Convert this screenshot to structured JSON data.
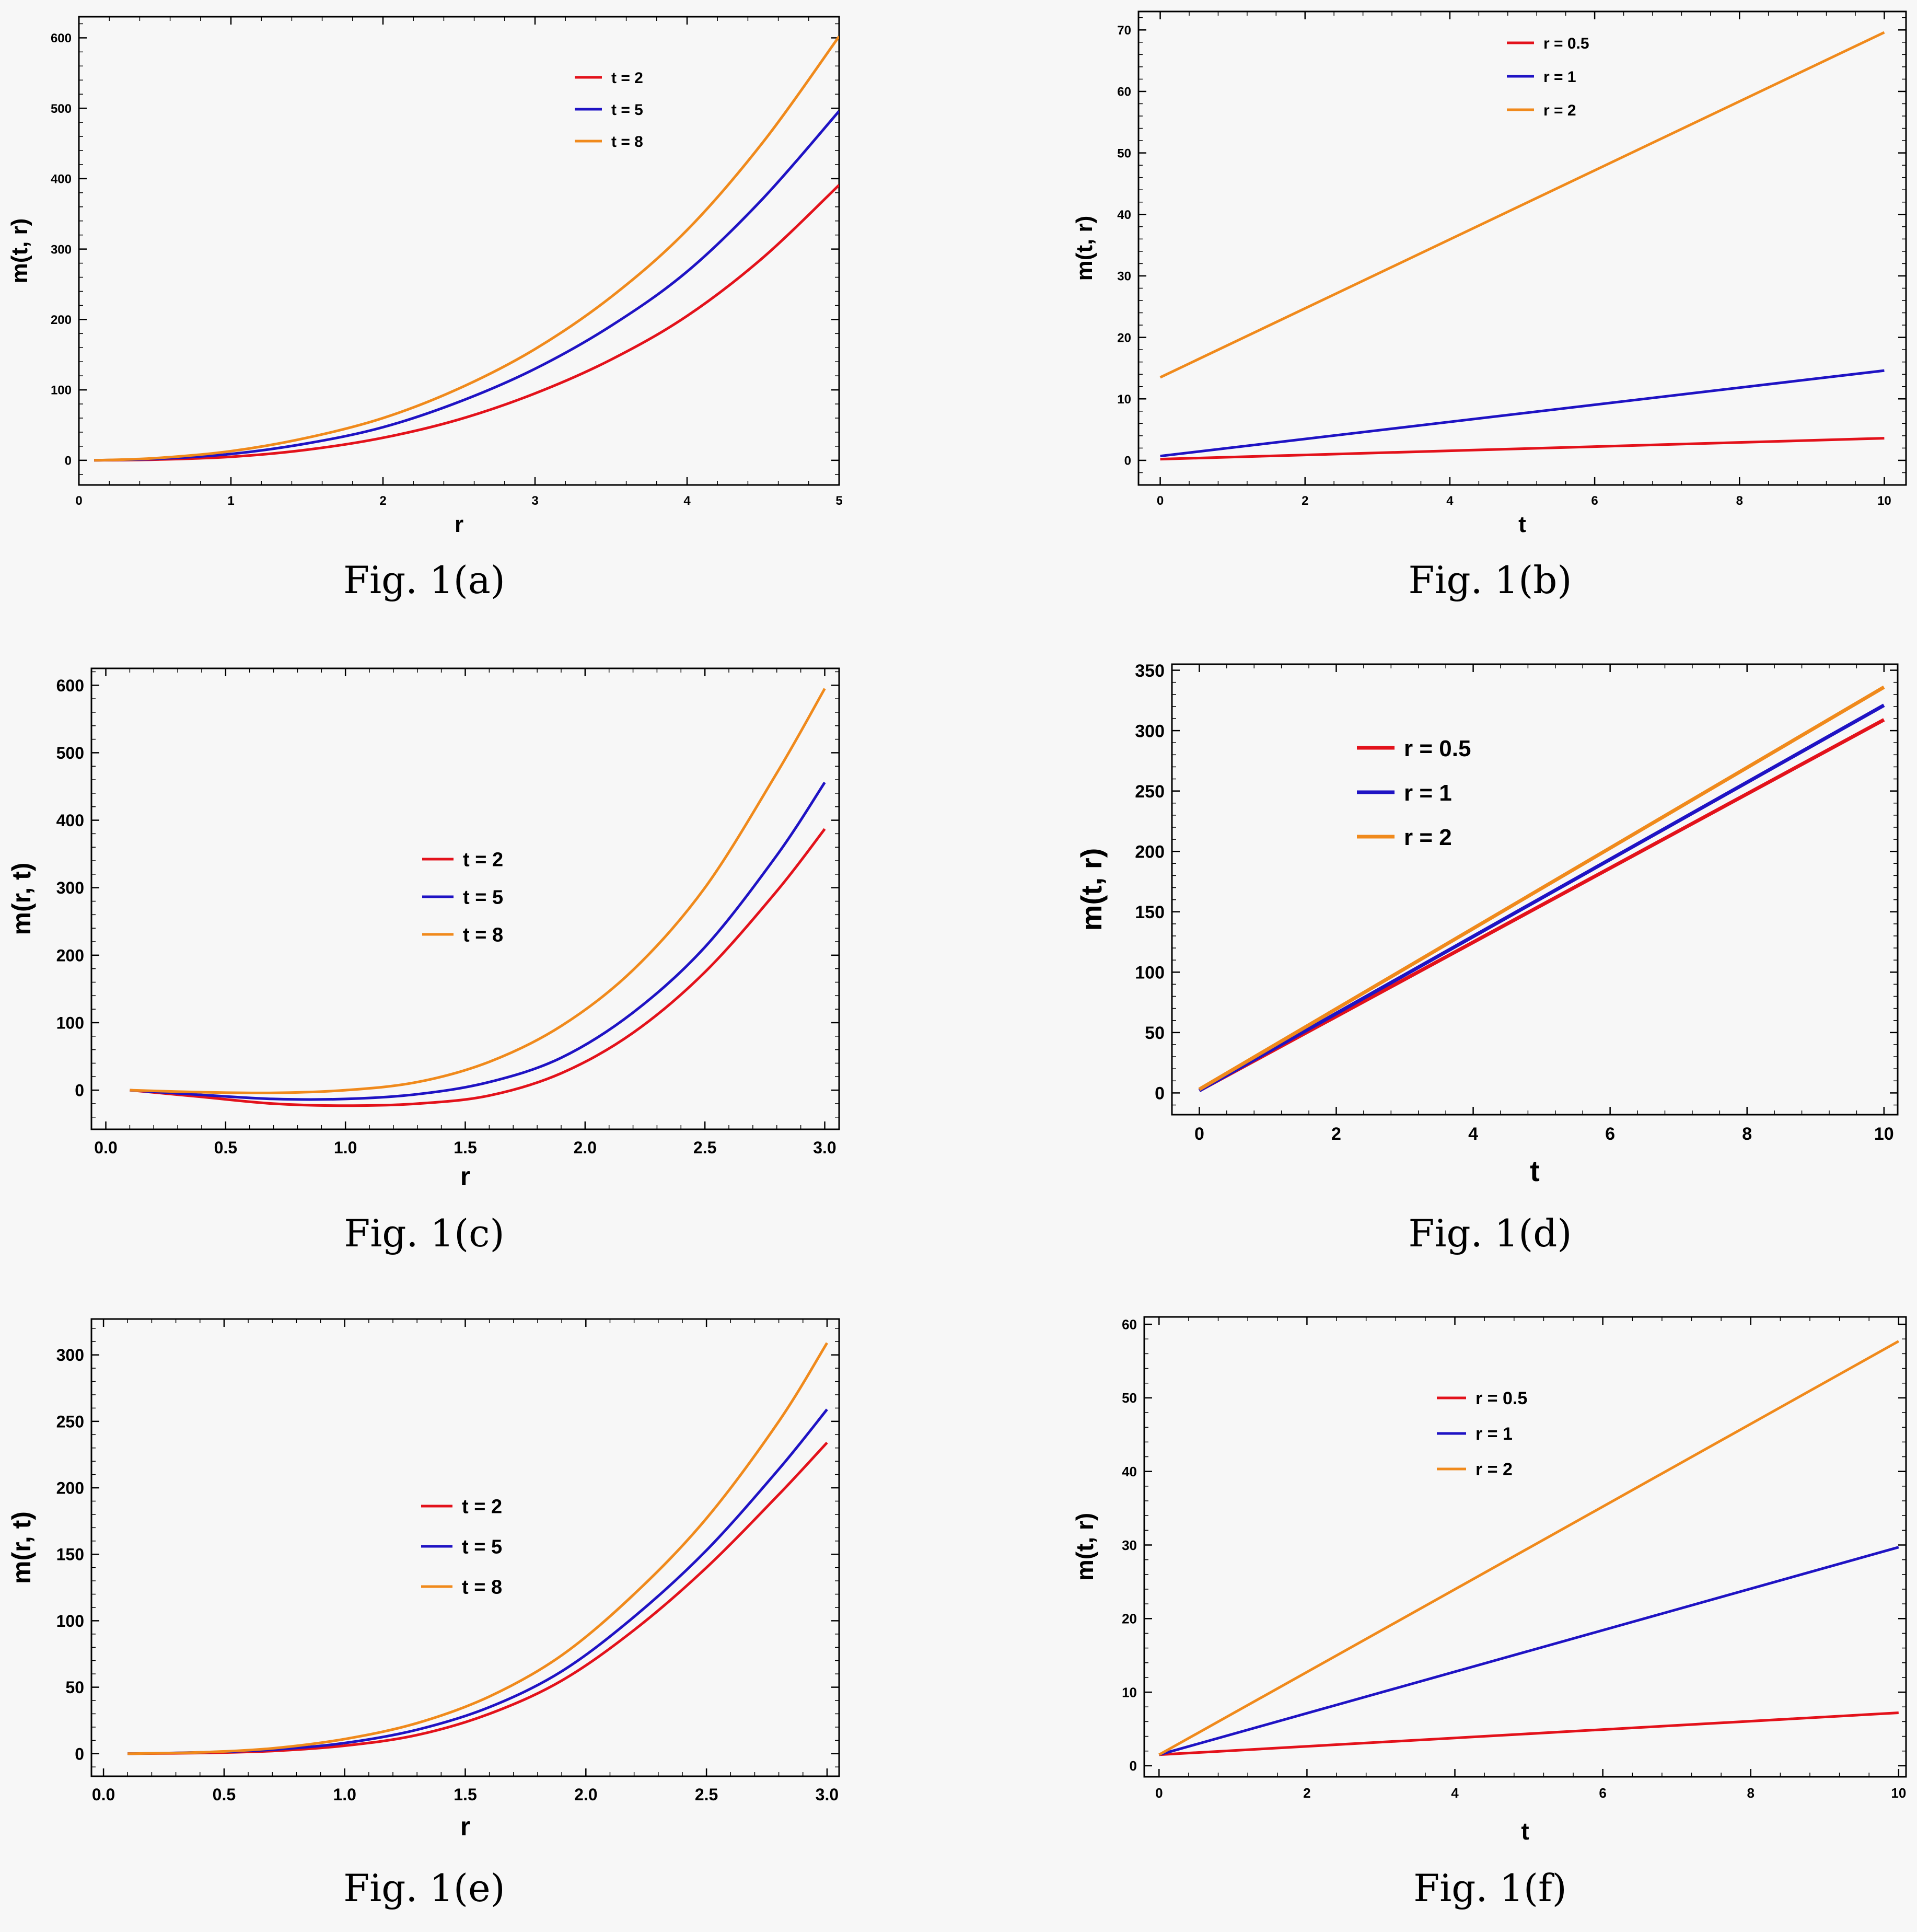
{
  "colors": {
    "red": "#e3121b",
    "blue": "#1f13c4",
    "orange": "#f08a1c",
    "frame": "#000000",
    "background": "#f7f7f7"
  },
  "chart_data": [
    {
      "id": "a",
      "caption": "Fig. 1(a)",
      "type": "line",
      "xlabel": "r",
      "ylabel": "m(t, r)",
      "xlim": [
        0,
        5
      ],
      "ylim": [
        -35,
        630
      ],
      "xticks": [
        0,
        1,
        2,
        3,
        4,
        5
      ],
      "xtick_labels": [
        "0",
        "1",
        "2",
        "3",
        "4",
        "5"
      ],
      "yticks": [
        0,
        100,
        200,
        300,
        400,
        500,
        600
      ],
      "ytick_labels": [
        "0",
        "100",
        "200",
        "300",
        "400",
        "500",
        "600"
      ],
      "legend_position": "top-right",
      "series": [
        {
          "name": "t = 2",
          "color": "red",
          "x": [
            0.1,
            0.5,
            1,
            1.5,
            2,
            2.5,
            3,
            3.5,
            4,
            4.5,
            5
          ],
          "y": [
            0,
            1,
            5,
            15,
            32,
            58,
            95,
            143,
            205,
            288,
            391
          ]
        },
        {
          "name": "t = 5",
          "color": "blue",
          "x": [
            0.1,
            0.5,
            1,
            1.5,
            2,
            2.5,
            3,
            3.5,
            4,
            4.5,
            5
          ],
          "y": [
            0,
            2,
            9,
            24,
            47,
            83,
            130,
            191,
            268,
            372,
            496
          ]
        },
        {
          "name": "t = 8",
          "color": "orange",
          "x": [
            0.1,
            0.5,
            1,
            1.5,
            2,
            2.5,
            3,
            3.5,
            4,
            4.5,
            5
          ],
          "y": [
            0,
            3,
            13,
            32,
            60,
            102,
            158,
            232,
            327,
            452,
            602
          ]
        }
      ]
    },
    {
      "id": "b",
      "caption": "Fig. 1(b)",
      "type": "line",
      "xlabel": "t",
      "ylabel": "m(t, r)",
      "xlim": [
        -0.3,
        10.3
      ],
      "ylim": [
        -4,
        73
      ],
      "xticks": [
        0,
        2,
        4,
        6,
        8,
        10
      ],
      "xtick_labels": [
        "0",
        "2",
        "4",
        "6",
        "8",
        "10"
      ],
      "yticks": [
        0,
        10,
        20,
        30,
        40,
        50,
        60,
        70
      ],
      "ytick_labels": [
        "0",
        "10",
        "20",
        "30",
        "40",
        "50",
        "60",
        "70"
      ],
      "legend_position": "top-center",
      "series": [
        {
          "name": "r = 0.5",
          "color": "red",
          "x": [
            0,
            10
          ],
          "y": [
            0.2,
            3.6
          ]
        },
        {
          "name": "r = 1",
          "color": "blue",
          "x": [
            0,
            10
          ],
          "y": [
            0.7,
            14.6
          ]
        },
        {
          "name": "r = 2",
          "color": "orange",
          "x": [
            0,
            10
          ],
          "y": [
            13.5,
            69.6
          ]
        }
      ]
    },
    {
      "id": "c",
      "caption": "Fig. 1(c)",
      "type": "line",
      "xlabel": "r",
      "ylabel": "m(r, t)",
      "xlim": [
        -0.06,
        3.06
      ],
      "ylim": [
        -58,
        625
      ],
      "xticks": [
        0,
        0.5,
        1,
        1.5,
        2,
        2.5,
        3
      ],
      "xtick_labels": [
        "0.0",
        "0.5",
        "1.0",
        "1.5",
        "2.0",
        "2.5",
        "3.0"
      ],
      "yticks": [
        0,
        100,
        200,
        300,
        400,
        500,
        600
      ],
      "ytick_labels": [
        "0",
        "100",
        "200",
        "300",
        "400",
        "500",
        "600"
      ],
      "legend_position": "center",
      "series": [
        {
          "name": "t = 2",
          "color": "red",
          "x": [
            0.1,
            0.4,
            0.7,
            1,
            1.3,
            1.6,
            1.9,
            2.2,
            2.5,
            2.8,
            3
          ],
          "y": [
            0,
            -10,
            -20,
            -23,
            -20,
            -8,
            25,
            85,
            175,
            295,
            387
          ]
        },
        {
          "name": "t = 5",
          "color": "blue",
          "x": [
            0.1,
            0.4,
            0.7,
            1,
            1.3,
            1.6,
            1.9,
            2.2,
            2.5,
            2.8,
            3
          ],
          "y": [
            0,
            -7,
            -13,
            -13,
            -6,
            12,
            48,
            115,
            212,
            348,
            456
          ]
        },
        {
          "name": "t = 8",
          "color": "orange",
          "x": [
            0.1,
            0.4,
            0.7,
            1,
            1.3,
            1.6,
            1.9,
            2.2,
            2.5,
            2.8,
            3
          ],
          "y": [
            0,
            -3,
            -4,
            0,
            12,
            42,
            95,
            178,
            300,
            470,
            595
          ]
        }
      ]
    },
    {
      "id": "d",
      "caption": "Fig. 1(d)",
      "type": "line",
      "xlabel": "t",
      "ylabel": "m(t, r)",
      "xlim": [
        -0.4,
        10.2
      ],
      "ylim": [
        -18,
        355
      ],
      "xticks": [
        0,
        2,
        4,
        6,
        8,
        10
      ],
      "xtick_labels": [
        "0",
        "2",
        "4",
        "6",
        "8",
        "10"
      ],
      "yticks": [
        0,
        50,
        100,
        150,
        200,
        250,
        300,
        350
      ],
      "ytick_labels": [
        "0",
        "50",
        "100",
        "150",
        "200",
        "250",
        "300",
        "350"
      ],
      "legend_position": "top-left",
      "series": [
        {
          "name": "r = 0.5",
          "color": "red",
          "x": [
            0,
            10
          ],
          "y": [
            2,
            309
          ]
        },
        {
          "name": "r = 1",
          "color": "blue",
          "x": [
            0,
            10
          ],
          "y": [
            2,
            321
          ]
        },
        {
          "name": "r = 2",
          "color": "orange",
          "x": [
            0,
            10
          ],
          "y": [
            3,
            336
          ]
        }
      ]
    },
    {
      "id": "e",
      "caption": "Fig. 1(e)",
      "type": "line",
      "xlabel": "r",
      "ylabel": "m(r, t)",
      "xlim": [
        -0.05,
        3.05
      ],
      "ylim": [
        -17,
        327
      ],
      "xticks": [
        0,
        0.5,
        1,
        1.5,
        2,
        2.5,
        3
      ],
      "xtick_labels": [
        "0.0",
        "0.5",
        "1.0",
        "1.5",
        "2.0",
        "2.5",
        "3.0"
      ],
      "yticks": [
        0,
        50,
        100,
        150,
        200,
        250,
        300
      ],
      "ytick_labels": [
        "0",
        "50",
        "100",
        "150",
        "200",
        "250",
        "300"
      ],
      "legend_position": "center",
      "series": [
        {
          "name": "t = 2",
          "color": "red",
          "x": [
            0.1,
            0.4,
            0.7,
            1,
            1.3,
            1.6,
            1.9,
            2.2,
            2.5,
            2.8,
            3
          ],
          "y": [
            0,
            0.5,
            2,
            6,
            14,
            30,
            55,
            93,
            140,
            195,
            234
          ]
        },
        {
          "name": "t = 5",
          "color": "blue",
          "x": [
            0.1,
            0.4,
            0.7,
            1,
            1.3,
            1.6,
            1.9,
            2.2,
            2.5,
            2.8,
            3
          ],
          "y": [
            0,
            1,
            3,
            8,
            18,
            35,
            62,
            103,
            153,
            214,
            259
          ]
        },
        {
          "name": "t = 8",
          "color": "orange",
          "x": [
            0.1,
            0.4,
            0.7,
            1,
            1.3,
            1.6,
            1.9,
            2.2,
            2.5,
            2.8,
            3
          ],
          "y": [
            0,
            1,
            4,
            11,
            23,
            43,
            74,
            120,
            177,
            250,
            309
          ]
        }
      ]
    },
    {
      "id": "f",
      "caption": "Fig. 1(f)",
      "type": "line",
      "xlabel": "t",
      "ylabel": "m(t, r)",
      "xlim": [
        -0.2,
        10.1
      ],
      "ylim": [
        -1.5,
        61
      ],
      "xticks": [
        0,
        2,
        4,
        6,
        8,
        10
      ],
      "xtick_labels": [
        "0",
        "2",
        "4",
        "6",
        "8",
        "10"
      ],
      "yticks": [
        0,
        10,
        20,
        30,
        40,
        50,
        60
      ],
      "ytick_labels": [
        "0",
        "10",
        "20",
        "30",
        "40",
        "50",
        "60"
      ],
      "legend_position": "top-center",
      "series": [
        {
          "name": "r = 0.5",
          "color": "red",
          "x": [
            0,
            10
          ],
          "y": [
            1.5,
            7.2
          ]
        },
        {
          "name": "r = 1",
          "color": "blue",
          "x": [
            0,
            10
          ],
          "y": [
            1.5,
            29.7
          ]
        },
        {
          "name": "r = 2",
          "color": "orange",
          "x": [
            0,
            10
          ],
          "y": [
            1.5,
            57.7
          ]
        }
      ]
    }
  ]
}
